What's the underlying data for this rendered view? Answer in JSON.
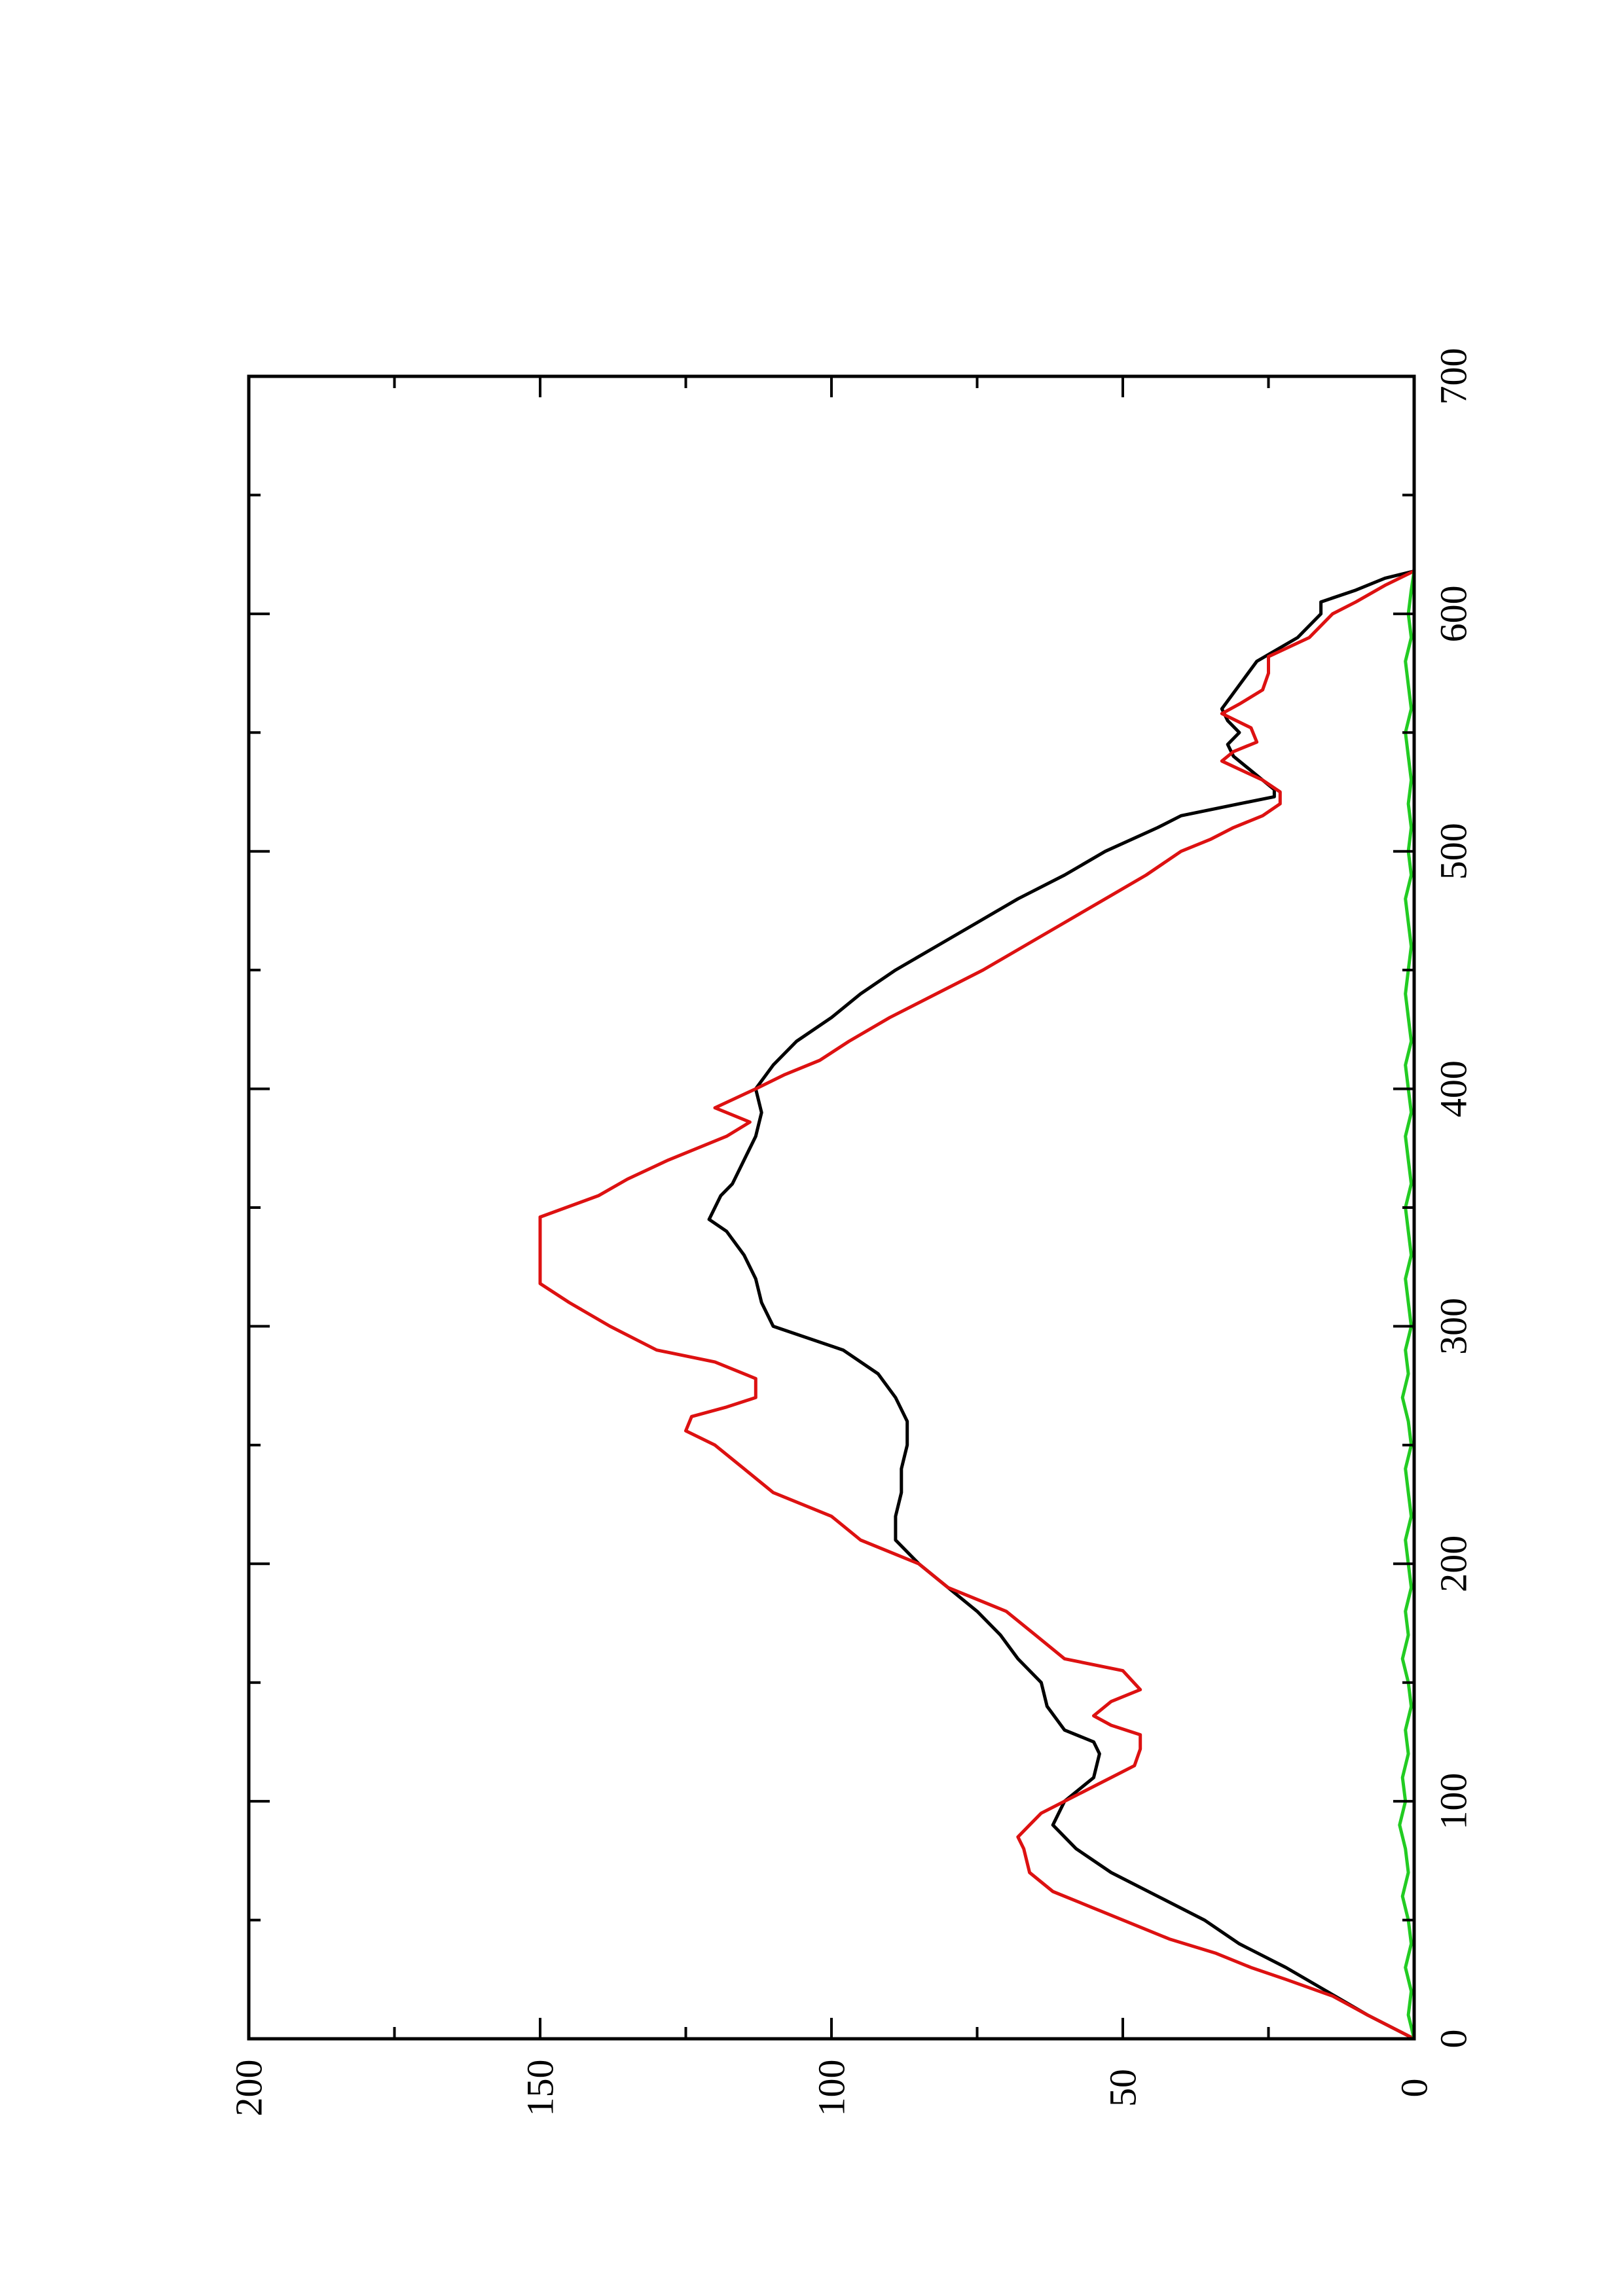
{
  "chart_data": {
    "type": "line",
    "orientation": "rotated-90-ccw",
    "title": "",
    "xlabel": "",
    "ylabel": "",
    "xlim": [
      0,
      700
    ],
    "ylim": [
      0,
      200
    ],
    "x_ticks": [
      "0",
      "100",
      "200",
      "300",
      "400",
      "500",
      "600",
      "700"
    ],
    "y_ticks": [
      "0",
      "50",
      "100",
      "150",
      "200"
    ],
    "grid": false,
    "legend": "none",
    "series": [
      {
        "color": "#000000",
        "points": [
          [
            0,
            0
          ],
          [
            10,
            8
          ],
          [
            20,
            15
          ],
          [
            30,
            22
          ],
          [
            40,
            30
          ],
          [
            50,
            36
          ],
          [
            60,
            44
          ],
          [
            70,
            52
          ],
          [
            80,
            58
          ],
          [
            90,
            62
          ],
          [
            100,
            60
          ],
          [
            110,
            55
          ],
          [
            120,
            54
          ],
          [
            125,
            55
          ],
          [
            130,
            60
          ],
          [
            140,
            63
          ],
          [
            150,
            64
          ],
          [
            160,
            68
          ],
          [
            170,
            71
          ],
          [
            180,
            75
          ],
          [
            190,
            80
          ],
          [
            200,
            85
          ],
          [
            210,
            89
          ],
          [
            220,
            89
          ],
          [
            230,
            88
          ],
          [
            240,
            88
          ],
          [
            250,
            87
          ],
          [
            260,
            87
          ],
          [
            270,
            89
          ],
          [
            280,
            92
          ],
          [
            290,
            98
          ],
          [
            300,
            110
          ],
          [
            310,
            112
          ],
          [
            320,
            113
          ],
          [
            330,
            115
          ],
          [
            340,
            118
          ],
          [
            345,
            121
          ],
          [
            350,
            120
          ],
          [
            355,
            119
          ],
          [
            360,
            117
          ],
          [
            370,
            115
          ],
          [
            380,
            113
          ],
          [
            390,
            112
          ],
          [
            400,
            113
          ],
          [
            410,
            110
          ],
          [
            420,
            106
          ],
          [
            430,
            100
          ],
          [
            440,
            95
          ],
          [
            450,
            89
          ],
          [
            460,
            82
          ],
          [
            470,
            75
          ],
          [
            480,
            68
          ],
          [
            490,
            60
          ],
          [
            500,
            53
          ],
          [
            510,
            44
          ],
          [
            515,
            40
          ],
          [
            520,
            30
          ],
          [
            523,
            24
          ],
          [
            526,
            24
          ],
          [
            530,
            26
          ],
          [
            540,
            31
          ],
          [
            545,
            32
          ],
          [
            550,
            30
          ],
          [
            555,
            32
          ],
          [
            560,
            33
          ],
          [
            570,
            30
          ],
          [
            580,
            27
          ],
          [
            590,
            20
          ],
          [
            600,
            16
          ],
          [
            605,
            16
          ],
          [
            610,
            10
          ],
          [
            615,
            5
          ],
          [
            618,
            0
          ]
        ]
      },
      {
        "color": "#dd1111",
        "points": [
          [
            0,
            0
          ],
          [
            10,
            8
          ],
          [
            18,
            14
          ],
          [
            25,
            22
          ],
          [
            30,
            28
          ],
          [
            36,
            34
          ],
          [
            42,
            42
          ],
          [
            48,
            48
          ],
          [
            55,
            55
          ],
          [
            62,
            62
          ],
          [
            70,
            66
          ],
          [
            80,
            67
          ],
          [
            85,
            68
          ],
          [
            90,
            66
          ],
          [
            95,
            64
          ],
          [
            100,
            60
          ],
          [
            105,
            56
          ],
          [
            110,
            52
          ],
          [
            115,
            48
          ],
          [
            122,
            47
          ],
          [
            128,
            47
          ],
          [
            132,
            52
          ],
          [
            136,
            55
          ],
          [
            142,
            52
          ],
          [
            147,
            47
          ],
          [
            155,
            50
          ],
          [
            160,
            60
          ],
          [
            170,
            65
          ],
          [
            180,
            70
          ],
          [
            190,
            80
          ],
          [
            200,
            85
          ],
          [
            210,
            95
          ],
          [
            220,
            100
          ],
          [
            230,
            110
          ],
          [
            240,
            115
          ],
          [
            250,
            120
          ],
          [
            256,
            125
          ],
          [
            262,
            124
          ],
          [
            266,
            118
          ],
          [
            270,
            113
          ],
          [
            278,
            113
          ],
          [
            285,
            120
          ],
          [
            290,
            130
          ],
          [
            300,
            138
          ],
          [
            310,
            145
          ],
          [
            318,
            150
          ],
          [
            330,
            150
          ],
          [
            346,
            150
          ],
          [
            355,
            140
          ],
          [
            362,
            135
          ],
          [
            370,
            128
          ],
          [
            380,
            118
          ],
          [
            386,
            114
          ],
          [
            392,
            120
          ],
          [
            400,
            113
          ],
          [
            406,
            108
          ],
          [
            412,
            102
          ],
          [
            420,
            97
          ],
          [
            430,
            90
          ],
          [
            440,
            82
          ],
          [
            450,
            74
          ],
          [
            460,
            67
          ],
          [
            470,
            60
          ],
          [
            480,
            53
          ],
          [
            490,
            46
          ],
          [
            500,
            40
          ],
          [
            505,
            35
          ],
          [
            510,
            31
          ],
          [
            515,
            26
          ],
          [
            520,
            23
          ],
          [
            525,
            23
          ],
          [
            530,
            26
          ],
          [
            538,
            33
          ],
          [
            542,
            31
          ],
          [
            546,
            27
          ],
          [
            552,
            28
          ],
          [
            558,
            33
          ],
          [
            562,
            30
          ],
          [
            568,
            26
          ],
          [
            575,
            25
          ],
          [
            582,
            25
          ],
          [
            590,
            18
          ],
          [
            600,
            14
          ],
          [
            605,
            10
          ],
          [
            612,
            5
          ],
          [
            618,
            0
          ]
        ]
      },
      {
        "color": "#22cc22",
        "points": [
          [
            0,
            0
          ],
          [
            10,
            1
          ],
          [
            20,
            0.5
          ],
          [
            30,
            1.5
          ],
          [
            40,
            0.5
          ],
          [
            50,
            1
          ],
          [
            60,
            2
          ],
          [
            70,
            1
          ],
          [
            80,
            1.5
          ],
          [
            90,
            2.5
          ],
          [
            100,
            1.5
          ],
          [
            110,
            2
          ],
          [
            120,
            1
          ],
          [
            130,
            1.5
          ],
          [
            140,
            0.5
          ],
          [
            150,
            1
          ],
          [
            160,
            2
          ],
          [
            170,
            1
          ],
          [
            180,
            1.5
          ],
          [
            190,
            0.5
          ],
          [
            200,
            1
          ],
          [
            210,
            1.5
          ],
          [
            220,
            0.5
          ],
          [
            230,
            1
          ],
          [
            240,
            1.5
          ],
          [
            250,
            0.5
          ],
          [
            260,
            1
          ],
          [
            270,
            2
          ],
          [
            280,
            1
          ],
          [
            290,
            1.5
          ],
          [
            300,
            0.5
          ],
          [
            310,
            1
          ],
          [
            320,
            1.5
          ],
          [
            330,
            0.5
          ],
          [
            340,
            1
          ],
          [
            350,
            1.5
          ],
          [
            360,
            0.5
          ],
          [
            370,
            1
          ],
          [
            380,
            1.5
          ],
          [
            390,
            0.5
          ],
          [
            400,
            1
          ],
          [
            410,
            1.5
          ],
          [
            420,
            0.5
          ],
          [
            430,
            1
          ],
          [
            440,
            1.5
          ],
          [
            450,
            1
          ],
          [
            460,
            0.5
          ],
          [
            470,
            1
          ],
          [
            480,
            1.5
          ],
          [
            490,
            0.5
          ],
          [
            500,
            1
          ],
          [
            510,
            0.5
          ],
          [
            520,
            1
          ],
          [
            530,
            0.5
          ],
          [
            540,
            1
          ],
          [
            550,
            1.5
          ],
          [
            560,
            0.5
          ],
          [
            570,
            1
          ],
          [
            580,
            1.5
          ],
          [
            590,
            0.5
          ],
          [
            600,
            1
          ],
          [
            610,
            0.5
          ],
          [
            618,
            0
          ]
        ]
      }
    ]
  }
}
